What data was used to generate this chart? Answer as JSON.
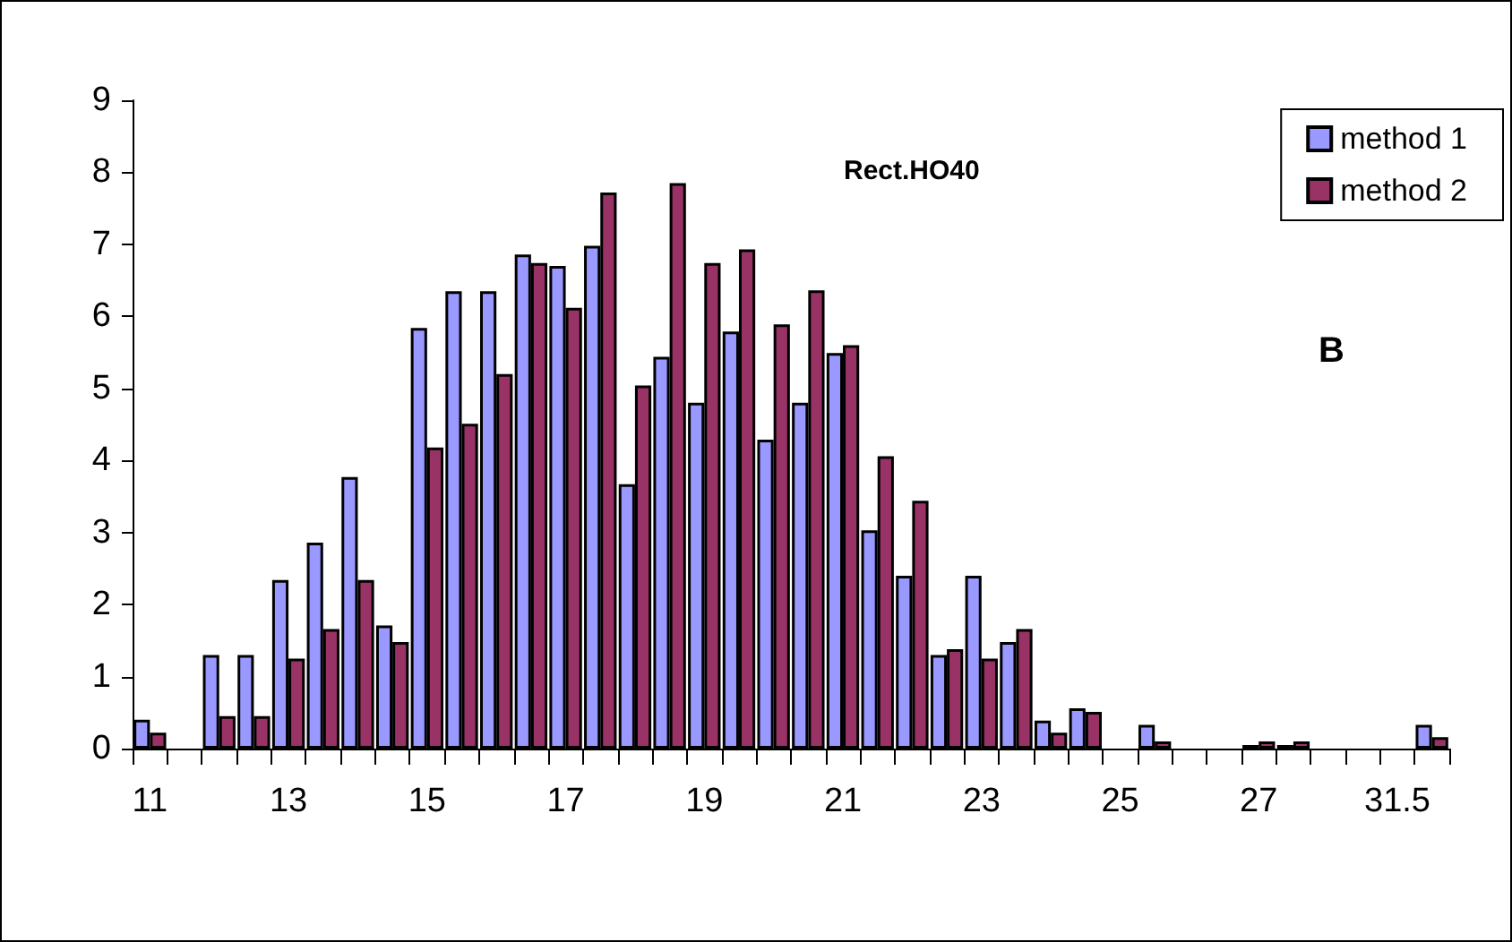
{
  "chart_data": {
    "type": "bar",
    "categories": [
      "11",
      null,
      null,
      null,
      "13",
      null,
      null,
      null,
      "15",
      null,
      null,
      null,
      "17",
      null,
      null,
      null,
      "19",
      null,
      null,
      null,
      "21",
      null,
      null,
      null,
      "23",
      null,
      null,
      null,
      "25",
      null,
      null,
      null,
      "27",
      null,
      null,
      null,
      "31.5",
      null
    ],
    "series": [
      {
        "name": "method 1",
        "color": "#9999ff",
        "values": [
          0.4,
          null,
          1.3,
          1.3,
          2.34,
          2.86,
          3.77,
          1.71,
          5.84,
          6.35,
          6.35,
          6.86,
          6.7,
          6.98,
          3.67,
          5.44,
          4.8,
          5.79,
          4.29,
          4.8,
          5.49,
          3.03,
          2.4,
          1.3,
          2.4,
          1.48,
          0.39,
          0.56,
          null,
          0.33,
          null,
          null,
          0.05,
          0.05,
          null,
          null,
          null,
          0.33
        ]
      },
      {
        "name": "method 2",
        "color": "#993366",
        "values": [
          0.22,
          null,
          0.45,
          0.45,
          1.25,
          1.66,
          2.34,
          1.48,
          4.18,
          4.51,
          5.2,
          6.74,
          6.12,
          7.72,
          5.04,
          7.85,
          6.74,
          6.93,
          5.89,
          6.36,
          5.6,
          4.06,
          3.44,
          1.38,
          1.25,
          1.66,
          0.22,
          0.51,
          null,
          0.1,
          null,
          null,
          0.1,
          0.1,
          null,
          null,
          null,
          0.16
        ]
      }
    ],
    "ylim": [
      0,
      9
    ],
    "yticks": [
      0,
      1,
      2,
      3,
      4,
      5,
      6,
      7,
      8,
      9
    ],
    "annotations": [
      "Rect.HO40",
      "B"
    ],
    "grid": false,
    "legend": "top right"
  }
}
